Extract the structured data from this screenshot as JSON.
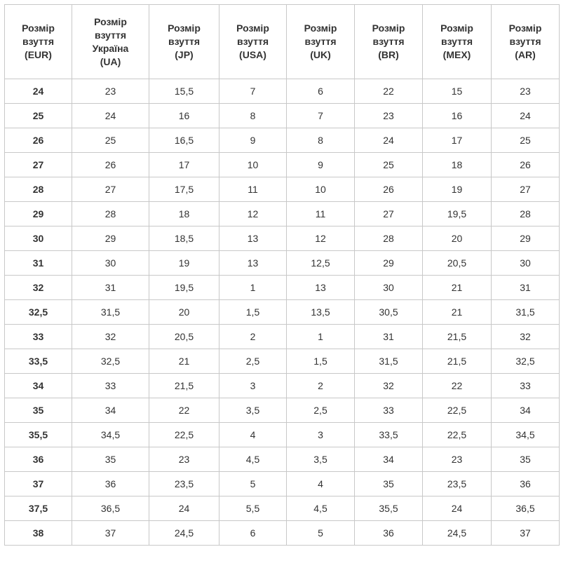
{
  "table": {
    "headers": [
      [
        "Розмір",
        "взуття",
        "(EUR)"
      ],
      [
        "Розмір",
        "взуття",
        "Україна",
        "(UA)"
      ],
      [
        "Розмір",
        "взуття",
        "(JP)"
      ],
      [
        "Розмір",
        "взуття",
        "(USA)"
      ],
      [
        "Розмір",
        "взуття",
        "(UK)"
      ],
      [
        "Розмір",
        "взуття",
        "(BR)"
      ],
      [
        "Розмір",
        "взуття",
        "(MEX)"
      ],
      [
        "Розмір",
        "взуття",
        "(AR)"
      ]
    ],
    "rows": [
      [
        "24",
        "23",
        "15,5",
        "7",
        "6",
        "22",
        "15",
        "23"
      ],
      [
        "25",
        "24",
        "16",
        "8",
        "7",
        "23",
        "16",
        "24"
      ],
      [
        "26",
        "25",
        "16,5",
        "9",
        "8",
        "24",
        "17",
        "25"
      ],
      [
        "27",
        "26",
        "17",
        "10",
        "9",
        "25",
        "18",
        "26"
      ],
      [
        "28",
        "27",
        "17,5",
        "11",
        "10",
        "26",
        "19",
        "27"
      ],
      [
        "29",
        "28",
        "18",
        "12",
        "11",
        "27",
        "19,5",
        "28"
      ],
      [
        "30",
        "29",
        "18,5",
        "13",
        "12",
        "28",
        "20",
        "29"
      ],
      [
        "31",
        "30",
        "19",
        "13",
        "12,5",
        "29",
        "20,5",
        "30"
      ],
      [
        "32",
        "31",
        "19,5",
        "1",
        "13",
        "30",
        "21",
        "31"
      ],
      [
        "32,5",
        "31,5",
        "20",
        "1,5",
        "13,5",
        "30,5",
        "21",
        "31,5"
      ],
      [
        "33",
        "32",
        "20,5",
        "2",
        "1",
        "31",
        "21,5",
        "32"
      ],
      [
        "33,5",
        "32,5",
        "21",
        "2,5",
        "1,5",
        "31,5",
        "21,5",
        "32,5"
      ],
      [
        "34",
        "33",
        "21,5",
        "3",
        "2",
        "32",
        "22",
        "33"
      ],
      [
        "35",
        "34",
        "22",
        "3,5",
        "2,5",
        "33",
        "22,5",
        "34"
      ],
      [
        "35,5",
        "34,5",
        "22,5",
        "4",
        "3",
        "33,5",
        "22,5",
        "34,5"
      ],
      [
        "36",
        "35",
        "23",
        "4,5",
        "3,5",
        "34",
        "23",
        "35"
      ],
      [
        "37",
        "36",
        "23,5",
        "5",
        "4",
        "35",
        "23,5",
        "36"
      ],
      [
        "37,5",
        "36,5",
        "24",
        "5,5",
        "4,5",
        "35,5",
        "24",
        "36,5"
      ],
      [
        "38",
        "37",
        "24,5",
        "6",
        "5",
        "36",
        "24,5",
        "37"
      ]
    ]
  }
}
